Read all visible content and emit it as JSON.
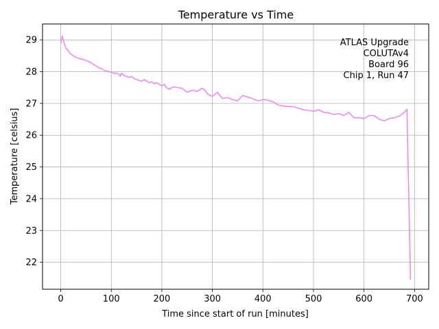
{
  "chart_data": {
    "type": "line",
    "title": "Temperature vs Time",
    "xlabel": "Time since start of run [minutes]",
    "ylabel": "Temperature [celsius]",
    "xlim": [
      -36,
      728
    ],
    "ylim": [
      21.15,
      29.5
    ],
    "xticks": [
      0,
      100,
      200,
      300,
      400,
      500,
      600,
      700
    ],
    "yticks": [
      22,
      23,
      24,
      25,
      26,
      27,
      28,
      29
    ],
    "grid": true,
    "line_color": "#ee82ee",
    "annotation": [
      "ATLAS Upgrade",
      "COLUTAv4",
      "Board 96",
      "Chip 1, Run 47"
    ],
    "series": [
      {
        "x": [
          0,
          3,
          6,
          10,
          15,
          20,
          25,
          30,
          35,
          40,
          45,
          50,
          55,
          60,
          65,
          70,
          75,
          80,
          85,
          90,
          95,
          100,
          105,
          110,
          115,
          118,
          120,
          125,
          130,
          135,
          140,
          145,
          150,
          155,
          160,
          165,
          170,
          175,
          180,
          185,
          190,
          195,
          200,
          205,
          210,
          215,
          220,
          225,
          230,
          240,
          250,
          260,
          270,
          280,
          285,
          290,
          300,
          310,
          320,
          330,
          340,
          350,
          360,
          370,
          380,
          390,
          400,
          410,
          420,
          430,
          440,
          450,
          460,
          470,
          480,
          490,
          500,
          510,
          520,
          530,
          540,
          550,
          560,
          570,
          580,
          590,
          600,
          610,
          620,
          630,
          640,
          650,
          660,
          670,
          680,
          685,
          692
        ],
        "y": [
          28.9,
          29.12,
          28.95,
          28.75,
          28.65,
          28.55,
          28.5,
          28.45,
          28.42,
          28.4,
          28.38,
          28.35,
          28.32,
          28.28,
          28.22,
          28.18,
          28.12,
          28.1,
          28.05,
          28.02,
          28.0,
          27.98,
          27.95,
          27.95,
          27.92,
          27.85,
          27.95,
          27.88,
          27.85,
          27.82,
          27.85,
          27.78,
          27.75,
          27.72,
          27.7,
          27.75,
          27.7,
          27.65,
          27.68,
          27.62,
          27.65,
          27.6,
          27.55,
          27.6,
          27.48,
          27.45,
          27.5,
          27.52,
          27.5,
          27.48,
          27.35,
          27.42,
          27.38,
          27.48,
          27.42,
          27.3,
          27.22,
          27.35,
          27.15,
          27.18,
          27.12,
          27.08,
          27.25,
          27.2,
          27.15,
          27.08,
          27.12,
          27.1,
          27.05,
          26.95,
          26.92,
          26.9,
          26.9,
          26.85,
          26.8,
          26.78,
          26.75,
          26.8,
          26.72,
          26.7,
          26.65,
          26.68,
          26.62,
          26.72,
          26.55,
          26.55,
          26.52,
          26.62,
          26.62,
          26.5,
          26.45,
          26.52,
          26.55,
          26.6,
          26.72,
          26.82,
          21.45
        ]
      }
    ]
  }
}
